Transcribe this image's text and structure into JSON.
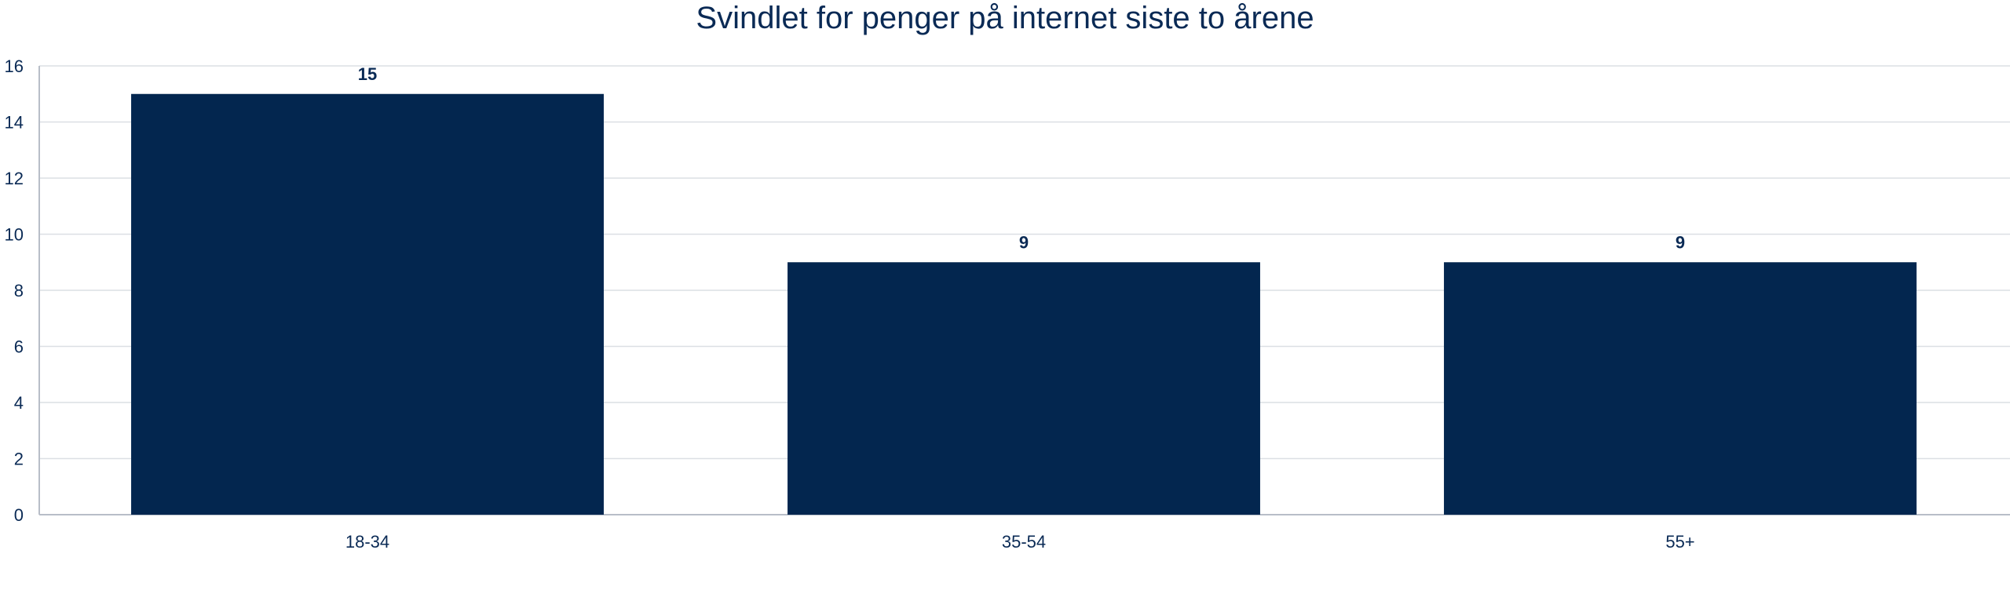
{
  "chart_data": {
    "type": "bar",
    "title": "Svindlet for penger på internet siste to årene",
    "categories": [
      "18-34",
      "35-54",
      "55+"
    ],
    "values": [
      15,
      9,
      9
    ],
    "data_labels": [
      "15",
      "9",
      "9"
    ],
    "xlabel": "",
    "ylabel": "",
    "ylim": [
      0,
      16
    ],
    "yticks": [
      "0",
      "2",
      "4",
      "6",
      "8",
      "10",
      "12",
      "14",
      "16"
    ],
    "grid": true,
    "legend": "none",
    "colors": {
      "bar": "#03264f",
      "text": "#0a2a55",
      "grid": "#dcdfe4",
      "axis": "#b8bec8"
    }
  }
}
